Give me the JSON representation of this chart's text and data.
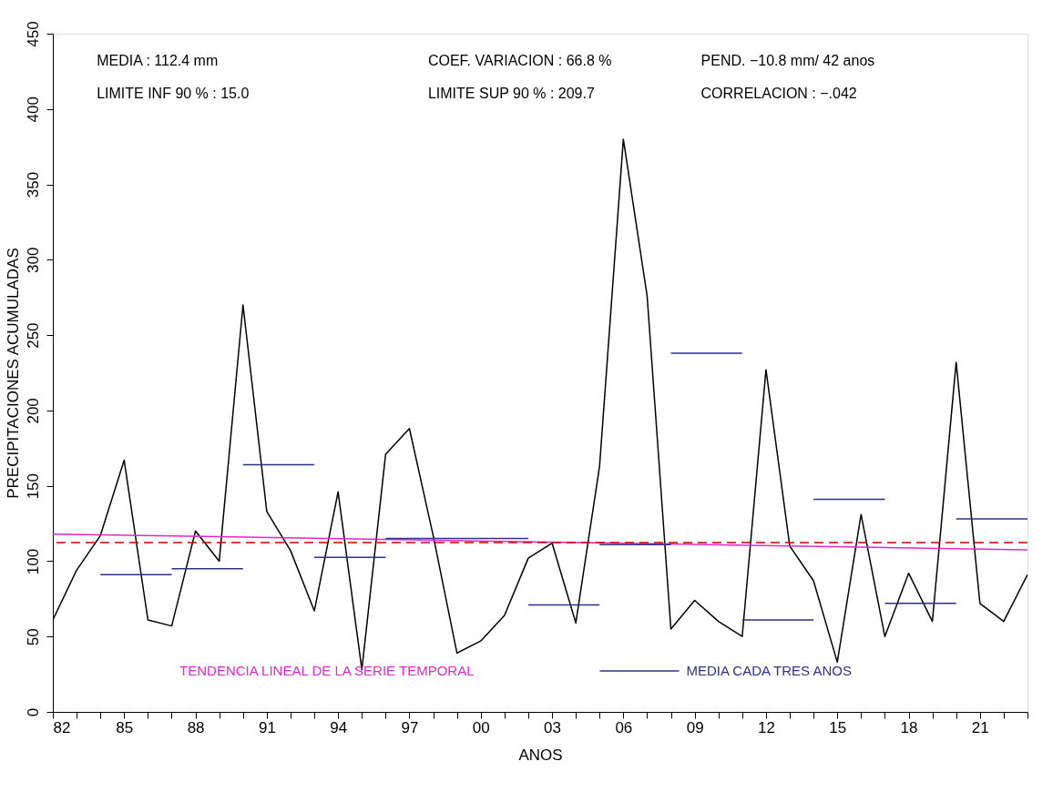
{
  "chart_data": {
    "type": "line",
    "xlabel": "ANOS",
    "ylabel": "PRECIPITACIONES ACUMULADAS",
    "annotations": [
      "MEDIA : 112.4 mm",
      "COEF. VARIACION :    66.8 %",
      "PEND.   −10.8 mm/ 42 anos",
      "LIMITE INF 90 % :    15.0",
      "LIMITE SUP 90 % :  209.7",
      "CORRELACION : −.042"
    ],
    "x": [
      1982,
      1983,
      1984,
      1985,
      1986,
      1987,
      1988,
      1989,
      1990,
      1991,
      1992,
      1993,
      1994,
      1995,
      1996,
      1997,
      1998,
      1999,
      2000,
      2001,
      2002,
      2003,
      2004,
      2005,
      2006,
      2007,
      2008,
      2009,
      2010,
      2011,
      2012,
      2013,
      2014,
      2015,
      2016,
      2017,
      2018,
      2019,
      2020,
      2021,
      2022,
      2023
    ],
    "series": [
      {
        "color": "#000000",
        "type": "line",
        "values": [
          61,
          94,
          117,
          167,
          61,
          57,
          120,
          100,
          270,
          133,
          107,
          67,
          146,
          28,
          171,
          188,
          117,
          39,
          47,
          64,
          102,
          112,
          59,
          163,
          380,
          276,
          55,
          74,
          60,
          50,
          227,
          110,
          87,
          33,
          131,
          50,
          92,
          60,
          232,
          72,
          60,
          91
        ]
      },
      {
        "name": "TENDENCIA LINEAL DE LA SERIE TEMPORAL",
        "color": "#e028c8",
        "type": "line",
        "x": [
          1982,
          2023
        ],
        "values": [
          118,
          107.5
        ]
      },
      {
        "name": "MEDIA CADA TRES ANOS",
        "color": "#30308c",
        "type": "line",
        "x": [
          1984,
          1987,
          null,
          1987,
          1990,
          null,
          1990,
          1993,
          null,
          1993,
          1996,
          null,
          1996,
          1999,
          null,
          1999,
          2002,
          null,
          2002,
          2005,
          null,
          2005,
          2008,
          null,
          2008,
          2011,
          null,
          2011,
          2014,
          null,
          2014,
          2017,
          null,
          2017,
          2020,
          null,
          2020,
          2023
        ],
        "values": [
          91,
          91,
          null,
          95,
          95,
          null,
          164,
          164,
          null,
          102.5,
          102.5,
          null,
          115,
          115,
          null,
          115,
          115,
          null,
          71,
          71,
          null,
          111,
          111,
          null,
          238,
          238,
          null,
          61,
          61,
          null,
          141,
          141,
          null,
          72,
          72,
          null,
          128,
          128
        ]
      }
    ],
    "ref_lines": [
      {
        "axis": "y",
        "value": 112.4,
        "color": "#cc0000",
        "line_style": "dashed"
      }
    ],
    "xlim": [
      1982,
      2023
    ],
    "xticks": [
      {
        "value": 1982,
        "label": "82"
      },
      {
        "value": 1983,
        "label": null
      },
      {
        "value": 1984,
        "label": null
      },
      {
        "value": 1985,
        "label": "85"
      },
      {
        "value": 1986,
        "label": null
      },
      {
        "value": 1987,
        "label": null
      },
      {
        "value": 1988,
        "label": "88"
      },
      {
        "value": 1989,
        "label": null
      },
      {
        "value": 1990,
        "label": null
      },
      {
        "value": 1991,
        "label": "91"
      },
      {
        "value": 1992,
        "label": null
      },
      {
        "value": 1993,
        "label": null
      },
      {
        "value": 1994,
        "label": "94"
      },
      {
        "value": 1995,
        "label": null
      },
      {
        "value": 1996,
        "label": null
      },
      {
        "value": 1997,
        "label": "97"
      },
      {
        "value": 1998,
        "label": null
      },
      {
        "value": 1999,
        "label": null
      },
      {
        "value": 2000,
        "label": "00"
      },
      {
        "value": 2001,
        "label": null
      },
      {
        "value": 2002,
        "label": null
      },
      {
        "value": 2003,
        "label": "03"
      },
      {
        "value": 2004,
        "label": null
      },
      {
        "value": 2005,
        "label": null
      },
      {
        "value": 2006,
        "label": "06"
      },
      {
        "value": 2007,
        "label": null
      },
      {
        "value": 2008,
        "label": null
      },
      {
        "value": 2009,
        "label": "09"
      },
      {
        "value": 2010,
        "label": null
      },
      {
        "value": 2011,
        "label": null
      },
      {
        "value": 2012,
        "label": "12"
      },
      {
        "value": 2013,
        "label": null
      },
      {
        "value": 2014,
        "label": null
      },
      {
        "value": 2015,
        "label": "15"
      },
      {
        "value": 2016,
        "label": null
      },
      {
        "value": 2017,
        "label": null
      },
      {
        "value": 2018,
        "label": "18"
      },
      {
        "value": 2019,
        "label": null
      },
      {
        "value": 2020,
        "label": null
      },
      {
        "value": 2021,
        "label": "21"
      },
      {
        "value": 2022,
        "label": null
      },
      {
        "value": 2023,
        "label": null
      }
    ],
    "ylim": [
      0,
      450
    ],
    "yticks": [
      0,
      50,
      100,
      150,
      200,
      250,
      300,
      350,
      400,
      450
    ],
    "grid": false,
    "legend": "bottom",
    "line_style": "solid"
  }
}
